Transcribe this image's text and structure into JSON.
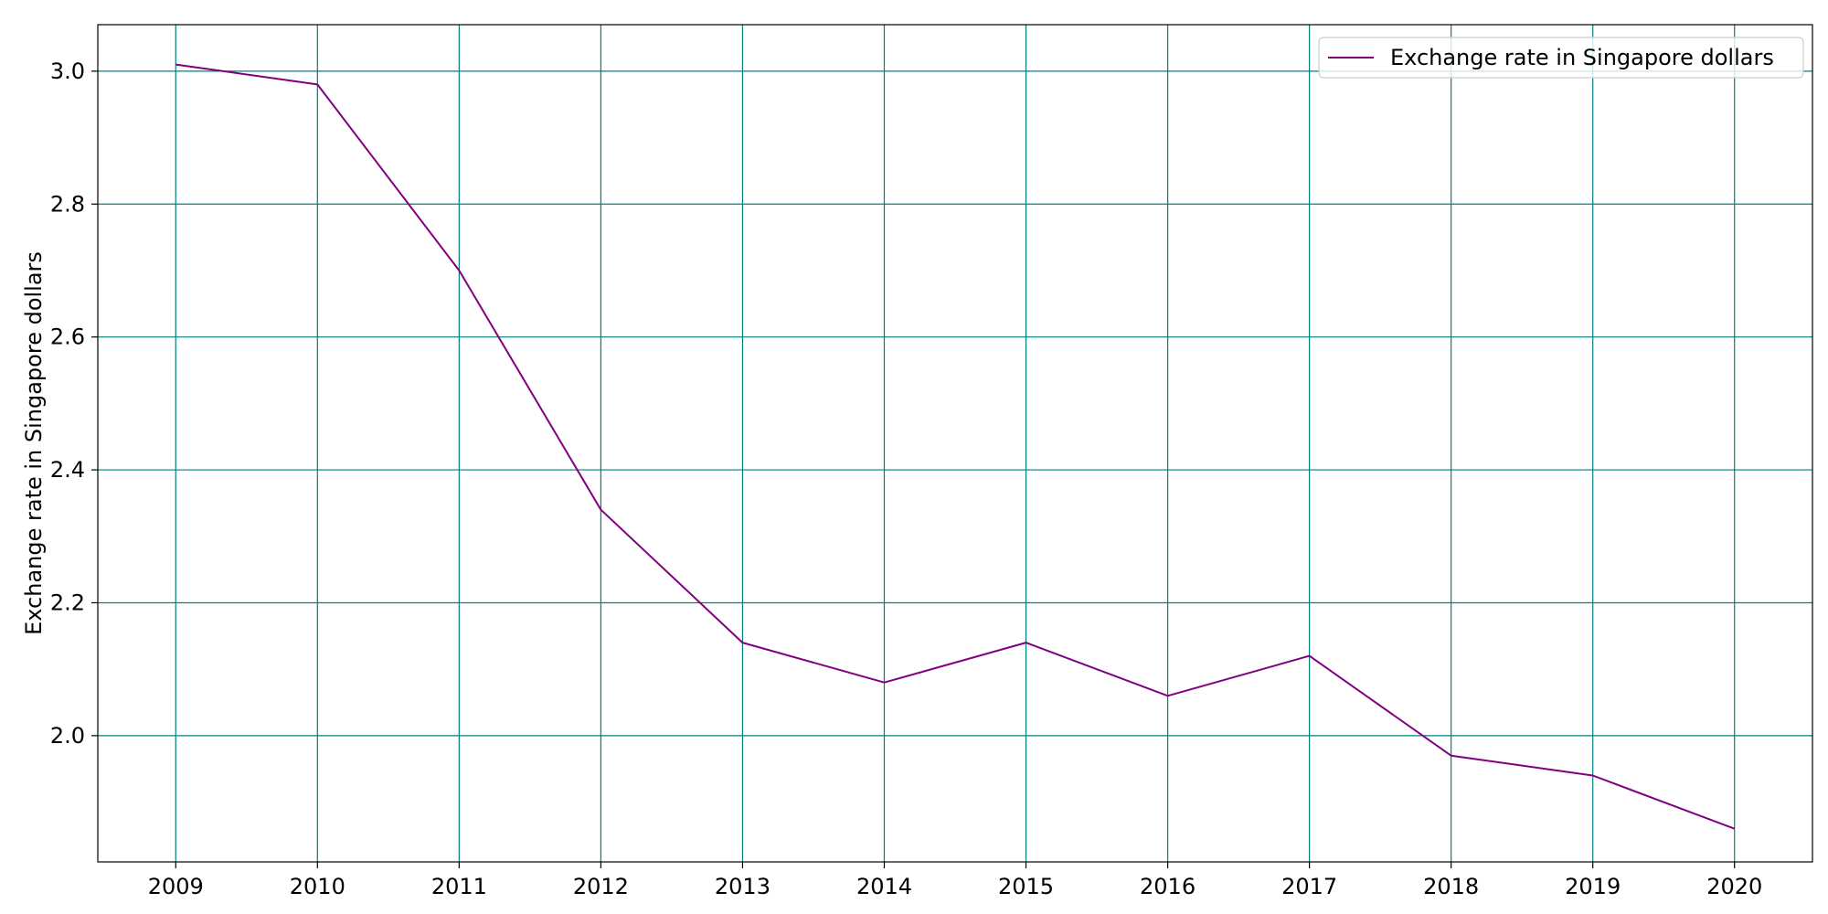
{
  "chart_data": {
    "type": "line",
    "title": "",
    "xlabel": "",
    "ylabel": "Exchange rate in Singapore dollars",
    "x": [
      "2009",
      "2010",
      "2011",
      "2012",
      "2013",
      "2014",
      "2015",
      "2016",
      "2017",
      "2018",
      "2019",
      "2020"
    ],
    "series": [
      {
        "name": "Exchange rate in Singapore dollars",
        "values": [
          3.01,
          2.98,
          2.7,
          2.34,
          2.14,
          2.08,
          2.14,
          2.06,
          2.12,
          1.97,
          1.94,
          1.86
        ],
        "color": "#800080"
      }
    ],
    "ylim": [
      1.81,
      3.07
    ],
    "yticks": [
      "2.0",
      "2.2",
      "2.4",
      "2.6",
      "2.8",
      "3.0"
    ],
    "grid": true,
    "grid_color": "#008080",
    "legend_position": "top-right"
  }
}
